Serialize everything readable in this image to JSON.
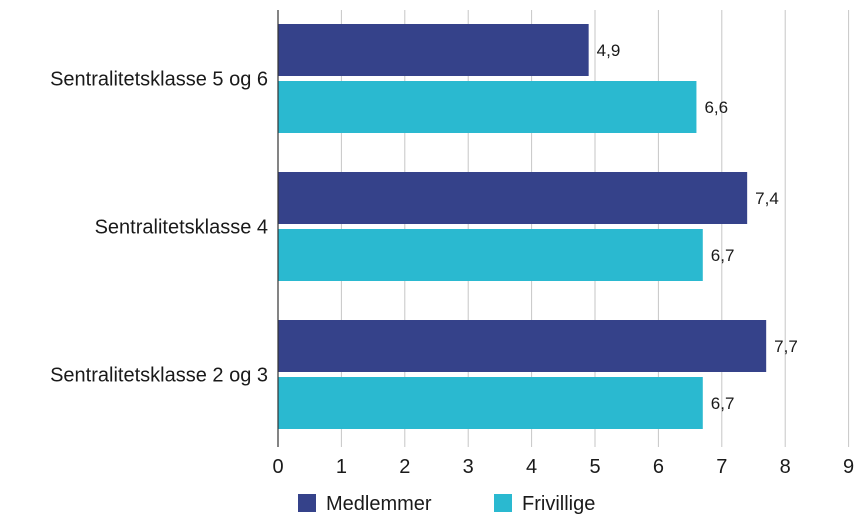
{
  "chart_data": {
    "type": "bar",
    "orientation": "horizontal",
    "categories": [
      "Sentralitetsklasse 5 og 6",
      "Sentralitetsklasse 4",
      "Sentralitetsklasse 2 og 3"
    ],
    "series": [
      {
        "name": "Medlemmer",
        "color": "#35428a",
        "values": [
          4.9,
          7.4,
          7.7
        ],
        "labels": [
          "4,9",
          "7,4",
          "7,7"
        ]
      },
      {
        "name": "Frivillige",
        "color": "#2ab9d0",
        "values": [
          6.6,
          6.7,
          6.7
        ],
        "labels": [
          "6,6",
          "6,7",
          "6,7"
        ]
      }
    ],
    "xlim": [
      0,
      9
    ],
    "x_ticks": [
      "0",
      "1",
      "2",
      "3",
      "4",
      "5",
      "6",
      "7",
      "8",
      "9"
    ],
    "grid": true,
    "legend_position": "bottom"
  }
}
